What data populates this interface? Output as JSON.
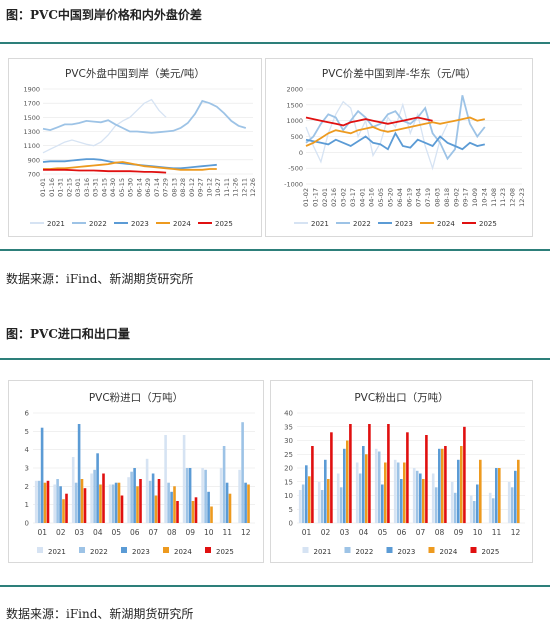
{
  "section1": {
    "title": "图：PVC中国到岸价格和内外盘价差",
    "source": "数据来源：iFind、新湖期货研究所"
  },
  "section2": {
    "title": "图：PVC进口和出口量",
    "source": "数据来源：iFind、新湖期货研究所"
  },
  "colors": {
    "2021": "#d6e3f3",
    "2022": "#9dc3e6",
    "2023": "#5b9bd5",
    "2024": "#ed9a1f",
    "2025": "#e01010",
    "rule": "#2d7f7a"
  },
  "chart_data": [
    {
      "id": "c1",
      "type": "line",
      "title": "PVC外盘中国到岸（美元/吨）",
      "ylim": [
        700,
        1900
      ],
      "yticks": [
        700,
        900,
        1100,
        1300,
        1500,
        1700,
        1900
      ],
      "xticks": [
        "01-01",
        "01-16",
        "01-31",
        "02-15",
        "03-01",
        "03-16",
        "03-31",
        "04-15",
        "04-30",
        "05-15",
        "05-30",
        "06-14",
        "06-29",
        "07-14",
        "07-29",
        "08-13",
        "08-28",
        "09-12",
        "09-27",
        "10-12",
        "10-27",
        "11-11",
        "11-26",
        "12-11",
        "12-26"
      ],
      "legend": [
        "2021",
        "2022",
        "2023",
        "2024",
        "2025"
      ],
      "series": [
        {
          "name": "2021",
          "values": [
            1000,
            1050,
            1100,
            1150,
            1180,
            1150,
            1120,
            1100,
            1150,
            1250,
            1380,
            1450,
            1500,
            1600,
            1700,
            1750,
            1600,
            1500
          ]
        },
        {
          "name": "2022",
          "values": [
            1340,
            1320,
            1360,
            1400,
            1400,
            1420,
            1450,
            1440,
            1430,
            1460,
            1400,
            1350,
            1300,
            1300,
            1290,
            1280,
            1290,
            1300,
            1310,
            1350,
            1420,
            1550,
            1730,
            1700,
            1650,
            1560,
            1450,
            1380,
            1350
          ]
        },
        {
          "name": "2023",
          "values": [
            870,
            880,
            880,
            880,
            890,
            900,
            910,
            910,
            900,
            880,
            860,
            850,
            840,
            830,
            820,
            810,
            800,
            790,
            780,
            780,
            790,
            800,
            810,
            820,
            830
          ]
        },
        {
          "name": "2024",
          "values": [
            770,
            770,
            780,
            780,
            790,
            800,
            810,
            820,
            830,
            840,
            860,
            870,
            850,
            830,
            810,
            800,
            790,
            780,
            770,
            760,
            760,
            760,
            760,
            770,
            770
          ]
        },
        {
          "name": "2025",
          "values": [
            760,
            760,
            760,
            760,
            755,
            750,
            750,
            750,
            745,
            740,
            740,
            740,
            740,
            735,
            730,
            730,
            725,
            720
          ]
        }
      ]
    },
    {
      "id": "c2",
      "type": "line",
      "title": "PVC价差中国到岸-华东（元/吨）",
      "ylim": [
        -1000,
        2000
      ],
      "yticks": [
        -1000,
        -500,
        0,
        500,
        1000,
        1500,
        2000
      ],
      "xticks": [
        "01-02",
        "01-17",
        "02-01",
        "02-16",
        "03-02",
        "03-17",
        "04-01",
        "04-16",
        "05-05",
        "05-20",
        "06-04",
        "06-19",
        "07-04",
        "07-19",
        "08-03",
        "08-18",
        "09-02",
        "09-17",
        "10-09",
        "10-24",
        "11-08",
        "11-23",
        "12-08",
        "12-23"
      ],
      "legend": [
        "2021",
        "2022",
        "2023",
        "2024",
        "2025"
      ],
      "series": [
        {
          "name": "2021",
          "values": [
            800,
            200,
            -300,
            600,
            1200,
            1600,
            1400,
            500,
            1000,
            -100,
            300,
            1100,
            800,
            1500,
            600,
            1200,
            200,
            -500,
            400,
            900
          ]
        },
        {
          "name": "2022",
          "values": [
            300,
            500,
            900,
            1200,
            1100,
            700,
            1000,
            1300,
            1100,
            800,
            900,
            1200,
            1300,
            1000,
            900,
            1100,
            1400,
            600,
            300,
            -200,
            100,
            1800,
            900,
            500,
            800
          ]
        },
        {
          "name": "2023",
          "values": [
            400,
            350,
            300,
            250,
            400,
            300,
            200,
            350,
            500,
            300,
            250,
            100,
            600,
            200,
            150,
            400,
            300,
            200,
            500,
            300,
            200,
            100,
            300,
            200,
            250
          ]
        },
        {
          "name": "2024",
          "values": [
            200,
            300,
            450,
            600,
            700,
            650,
            600,
            700,
            750,
            800,
            700,
            650,
            700,
            750,
            800,
            850,
            900,
            950,
            900,
            950,
            1000,
            1050,
            1100,
            1000,
            1050
          ]
        },
        {
          "name": "2025",
          "values": [
            1100,
            1050,
            1000,
            950,
            900,
            850,
            950,
            1000,
            1050,
            1000,
            950,
            900,
            950,
            1000,
            1050,
            1100,
            1050,
            1000
          ]
        }
      ]
    },
    {
      "id": "c3",
      "type": "bar",
      "title": "PVC粉进口（万吨）",
      "categories": [
        "01",
        "02",
        "03",
        "04",
        "05",
        "06",
        "07",
        "08",
        "09",
        "10",
        "11",
        "12"
      ],
      "ylim": [
        0,
        6
      ],
      "yticks": [
        0,
        1,
        2,
        3,
        4,
        5,
        6
      ],
      "legend": [
        "2021",
        "2022",
        "2023",
        "2024",
        "2025"
      ],
      "series": [
        {
          "name": "2021",
          "values": [
            2.3,
            2.1,
            3.6,
            2.7,
            2.1,
            2.5,
            3.5,
            4.8,
            4.8,
            3.0,
            3.0,
            2.9
          ]
        },
        {
          "name": "2022",
          "values": [
            2.3,
            2.4,
            2.2,
            2.9,
            2.1,
            2.8,
            2.3,
            2.2,
            3.0,
            2.9,
            4.2,
            5.5
          ]
        },
        {
          "name": "2023",
          "values": [
            5.2,
            2.0,
            5.4,
            3.8,
            2.2,
            3.0,
            2.7,
            1.7,
            3.0,
            1.7,
            2.2,
            2.2
          ]
        },
        {
          "name": "2024",
          "values": [
            2.2,
            1.3,
            2.4,
            2.1,
            2.2,
            2.0,
            1.5,
            2.0,
            1.2,
            0.9,
            1.6,
            2.1
          ]
        },
        {
          "name": "2025",
          "values": [
            2.3,
            1.6,
            1.9,
            2.7,
            1.5,
            2.4,
            2.4,
            1.2,
            1.4,
            null,
            null,
            null
          ]
        }
      ]
    },
    {
      "id": "c4",
      "type": "bar",
      "title": "PVC粉出口（万吨）",
      "categories": [
        "01",
        "02",
        "03",
        "04",
        "05",
        "06",
        "07",
        "08",
        "09",
        "10",
        "11",
        "12"
      ],
      "ylim": [
        0,
        40
      ],
      "yticks": [
        0,
        5,
        10,
        15,
        20,
        25,
        30,
        35,
        40
      ],
      "legend": [
        "2021",
        "2022",
        "2023",
        "2024",
        "2025"
      ],
      "series": [
        {
          "name": "2021",
          "values": [
            12,
            15,
            18,
            22,
            27,
            23,
            20,
            18,
            15,
            10,
            11,
            15
          ]
        },
        {
          "name": "2022",
          "values": [
            14,
            12,
            13,
            18,
            26,
            22,
            19,
            13,
            11,
            8,
            9,
            13
          ]
        },
        {
          "name": "2023",
          "values": [
            21,
            23,
            27,
            28,
            14,
            16,
            18,
            27,
            23,
            14,
            20,
            19
          ]
        },
        {
          "name": "2024",
          "values": [
            17,
            16,
            30,
            25,
            22,
            22,
            16,
            27,
            28,
            23,
            20,
            23
          ]
        },
        {
          "name": "2025",
          "values": [
            28,
            33,
            36,
            36,
            36,
            33,
            32,
            28,
            35,
            null,
            null,
            null
          ]
        }
      ]
    }
  ]
}
